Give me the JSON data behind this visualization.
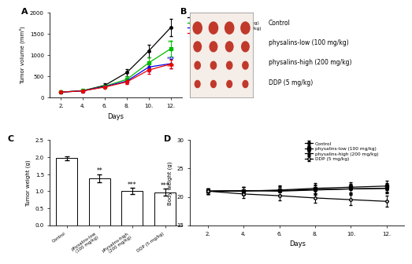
{
  "panel_A": {
    "days": [
      2,
      4,
      6,
      8,
      10,
      12
    ],
    "control_mean": [
      130,
      165,
      290,
      590,
      1100,
      1650
    ],
    "control_err": [
      15,
      20,
      40,
      80,
      150,
      200
    ],
    "physlow_mean": [
      130,
      165,
      270,
      430,
      820,
      1150
    ],
    "physlow_err": [
      15,
      20,
      40,
      70,
      120,
      180
    ],
    "physhigh_mean": [
      130,
      160,
      260,
      390,
      720,
      800
    ],
    "physhigh_err": [
      15,
      20,
      35,
      60,
      100,
      120
    ],
    "ddp_mean": [
      130,
      160,
      250,
      370,
      650,
      790
    ],
    "ddp_err": [
      15,
      20,
      30,
      50,
      90,
      110
    ],
    "colors": [
      "#000000",
      "#00bb00",
      "#0000ee",
      "#ee0000"
    ],
    "ylabel": "Tumor volume (mm³)",
    "xlabel": "Days",
    "ylim": [
      0,
      2000
    ],
    "yticks": [
      0,
      500,
      1000,
      1500,
      2000
    ],
    "sig_green": "**",
    "sig_blue": "***",
    "sig_red": "***",
    "legend": [
      "Control",
      "physalins-low (100 mg/kg)",
      "physalins-high (200 mg/kg)",
      "DDP (5 mg/kg)"
    ]
  },
  "panel_B": {
    "labels": [
      "Control",
      "physalins-low (100 mg/kg)",
      "physalins-high (200 mg/kg)",
      "DDP (5 mg/kg)"
    ],
    "photo_bg": "#f5ede8",
    "label_fontsize": 5.5
  },
  "panel_C": {
    "means": [
      1.97,
      1.38,
      1.0,
      0.97
    ],
    "errors": [
      0.06,
      0.12,
      0.09,
      0.1
    ],
    "bar_color": "#ffffff",
    "bar_edge": "#000000",
    "ylabel": "Tumor weight (g)",
    "ylim": [
      0,
      2.5
    ],
    "yticks": [
      0.0,
      0.5,
      1.0,
      1.5,
      2.0,
      2.5
    ],
    "significance": [
      "",
      "**",
      "***",
      "***"
    ],
    "cat_labels": [
      "Control",
      "physalins-low\n(100 mg/kg)",
      "physalins-high\n(200 mg/kg)",
      "DDP (5 mg/kg)"
    ]
  },
  "panel_D": {
    "days": [
      2,
      4,
      6,
      8,
      10,
      12
    ],
    "control_mean": [
      21.0,
      21.1,
      21.0,
      21.2,
      21.4,
      21.5
    ],
    "control_err": [
      0.5,
      0.7,
      0.8,
      0.8,
      0.9,
      0.8
    ],
    "physlow_mean": [
      21.0,
      21.0,
      21.2,
      21.5,
      21.7,
      21.9
    ],
    "physlow_err": [
      0.5,
      0.7,
      0.8,
      0.9,
      0.9,
      1.0
    ],
    "physhigh_mean": [
      21.0,
      21.1,
      21.1,
      21.3,
      21.4,
      21.5
    ],
    "physhigh_err": [
      0.5,
      0.7,
      0.8,
      0.8,
      0.8,
      0.9
    ],
    "ddp_mean": [
      21.0,
      20.5,
      20.2,
      19.8,
      19.5,
      19.2
    ],
    "ddp_err": [
      0.5,
      0.7,
      0.8,
      0.8,
      0.9,
      1.0
    ],
    "colors": [
      "#000000",
      "#000000",
      "#000000",
      "#000000"
    ],
    "ylabel": "Body weight (g)",
    "xlabel": "Days",
    "ylim": [
      15,
      30
    ],
    "yticks": [
      15,
      20,
      25,
      30
    ],
    "legend": [
      "Control",
      "physalins-low (100 mg/kg)",
      "physalins-high (200 mg/kg)",
      "DDP (5 mg/kg)"
    ]
  },
  "background_color": "#ffffff"
}
